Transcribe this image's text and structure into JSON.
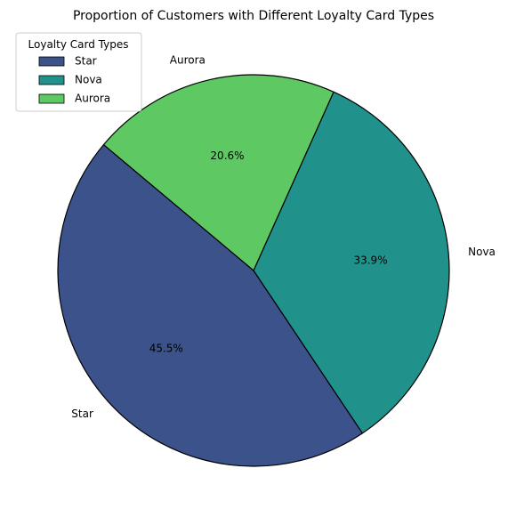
{
  "chart_data": {
    "type": "pie",
    "title": "Proportion of Customers with Different Loyalty Card Types",
    "categories": [
      "Star",
      "Nova",
      "Aurora"
    ],
    "values": [
      45.5,
      33.9,
      20.6
    ],
    "percent_labels": [
      "45.5%",
      "33.9%",
      "20.6%"
    ],
    "colors": [
      "#3b528b",
      "#21918c",
      "#5ec962"
    ],
    "start_angle_deg": 140,
    "direction": "counterclockwise",
    "legend": {
      "title": "Loyalty Card Types",
      "placement": "upper-left",
      "entries": [
        "Star",
        "Nova",
        "Aurora"
      ]
    }
  }
}
